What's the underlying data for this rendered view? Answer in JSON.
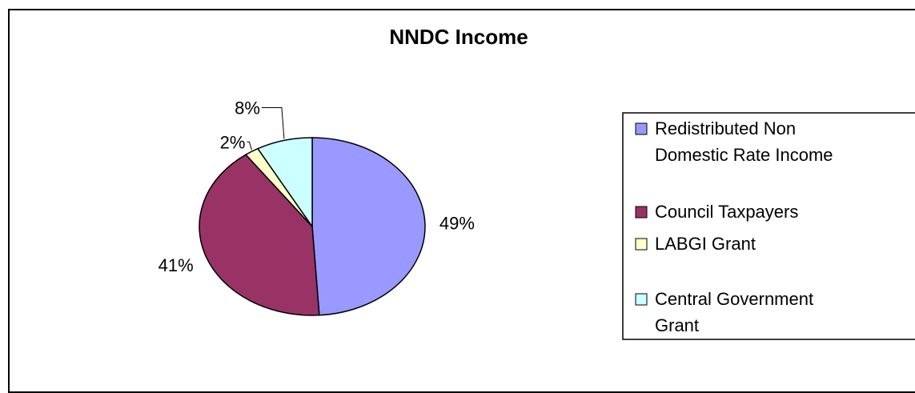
{
  "chart_data": {
    "type": "pie",
    "title": "NNDC Income",
    "slices": [
      {
        "label": "Redistributed Non Domestic Rate Income",
        "label_lines": [
          "Redistributed Non",
          "Domestic Rate Income"
        ],
        "value": 49,
        "data_label": "49%",
        "color": "#9999ff"
      },
      {
        "label": "Council Taxpayers",
        "label_lines": [
          "Council Taxpayers"
        ],
        "value": 41,
        "data_label": "41%",
        "color": "#993366"
      },
      {
        "label": "LABGI Grant",
        "label_lines": [
          "LABGI Grant"
        ],
        "value": 2,
        "data_label": "2%",
        "color": "#ffffcc"
      },
      {
        "label": "Central Government Grant",
        "label_lines": [
          "Central Government",
          "Grant"
        ],
        "value": 8,
        "data_label": "8%",
        "color": "#ccffff"
      }
    ],
    "legend_position": "right"
  }
}
